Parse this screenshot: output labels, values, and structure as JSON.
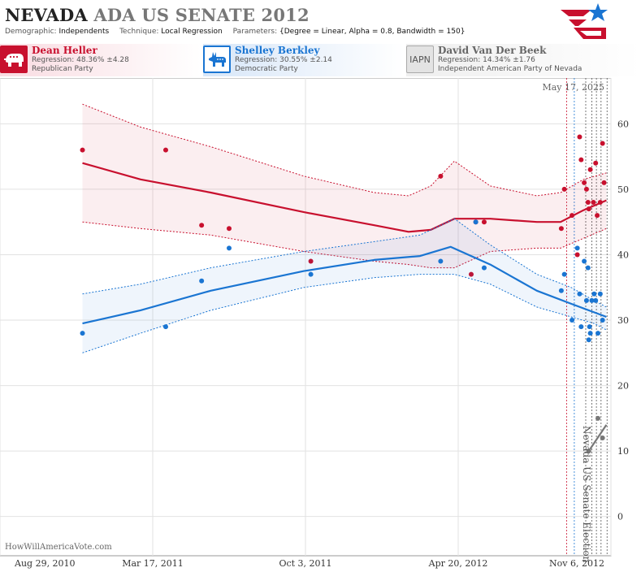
{
  "header": {
    "title_state": "NEVADA",
    "title_rest": "ADA US SENATE 2012",
    "demographic_label": "Demographic:",
    "demographic_value": "Independents",
    "technique_label": "Technique:",
    "technique_value": "Local Regression",
    "parameters_label": "Parameters:",
    "parameters_value": "{Degree = Linear, Alpha = 0.8, Bandwidth = 150}"
  },
  "candidates": [
    {
      "name": "Dean Heller",
      "regression": "Regression: 48.36% ±4.28",
      "party": "Republican Party",
      "color": "#c8102e",
      "icon": "elephant-icon"
    },
    {
      "name": "Shelley Berkley",
      "regression": "Regression: 30.55% ±2.14",
      "party": "Democratic Party",
      "color": "#1a75d2",
      "icon": "donkey-icon"
    },
    {
      "name": "David Van Der Beek",
      "regression": "Regression: 14.34% ±1.76",
      "party": "Independent American Party of Nevada",
      "color": "#777777",
      "badge": "IAPN"
    }
  ],
  "footer": {
    "source": "HowWillAmericaVote.com"
  },
  "chart_data": {
    "type": "scatter",
    "current_date": "May 17, 2025",
    "election_label": "Nevada US Senate Election",
    "x_ticks": [
      "Aug 29, 2010",
      "Mar 17, 2011",
      "Oct 3, 2011",
      "Apr 20, 2012",
      "Nov 6, 2012"
    ],
    "y_ticks": [
      0,
      10,
      20,
      30,
      40,
      50,
      60
    ],
    "xlim": [
      "2010-08-29",
      "2012-11-06"
    ],
    "ylim": [
      -6,
      67
    ],
    "grid": true,
    "poll_dates": [
      "2012-09-09",
      "2012-09-19",
      "2012-10-04",
      "2012-10-12",
      "2012-10-18",
      "2012-10-24",
      "2012-11-01"
    ],
    "series": [
      {
        "name": "Dean Heller",
        "color": "#c8102e",
        "points": [
          [
            "2010-12-15",
            56
          ],
          [
            "2011-04-03",
            56
          ],
          [
            "2011-05-20",
            44.5
          ],
          [
            "2011-06-25",
            44
          ],
          [
            "2011-10-10",
            39
          ],
          [
            "2012-03-28",
            52
          ],
          [
            "2012-05-07",
            37
          ],
          [
            "2012-05-13",
            45
          ],
          [
            "2012-05-24",
            45
          ],
          [
            "2012-09-02",
            44
          ],
          [
            "2012-09-06",
            50
          ],
          [
            "2012-09-16",
            46
          ],
          [
            "2012-09-23",
            40
          ],
          [
            "2012-09-26",
            58
          ],
          [
            "2012-09-28",
            54.5
          ],
          [
            "2012-10-02",
            51
          ],
          [
            "2012-10-05",
            50
          ],
          [
            "2012-10-07",
            48
          ],
          [
            "2012-10-08",
            47
          ],
          [
            "2012-10-10",
            53
          ],
          [
            "2012-10-14",
            48
          ],
          [
            "2012-10-17",
            54
          ],
          [
            "2012-10-19",
            46
          ],
          [
            "2012-10-23",
            48
          ],
          [
            "2012-10-26",
            57
          ],
          [
            "2012-10-28",
            51
          ]
        ],
        "fit": [
          [
            "2010-12-15",
            54
          ],
          [
            "2011-03-01",
            51.5
          ],
          [
            "2011-06-01",
            49.5
          ],
          [
            "2011-10-01",
            46.5
          ],
          [
            "2012-01-01",
            44.5
          ],
          [
            "2012-02-15",
            43.5
          ],
          [
            "2012-03-15",
            43.8
          ],
          [
            "2012-04-15",
            45.5
          ],
          [
            "2012-06-01",
            45.5
          ],
          [
            "2012-08-01",
            45
          ],
          [
            "2012-09-01",
            45
          ],
          [
            "2012-10-01",
            46.8
          ],
          [
            "2012-10-31",
            48.3
          ]
        ],
        "band_upper": [
          [
            "2010-12-15",
            63
          ],
          [
            "2011-03-01",
            59.5
          ],
          [
            "2011-06-01",
            56.5
          ],
          [
            "2011-10-01",
            52
          ],
          [
            "2012-01-01",
            49.5
          ],
          [
            "2012-02-15",
            49
          ],
          [
            "2012-03-15",
            50.5
          ],
          [
            "2012-04-15",
            54.3
          ],
          [
            "2012-06-01",
            50.5
          ],
          [
            "2012-08-01",
            49
          ],
          [
            "2012-09-01",
            49.5
          ],
          [
            "2012-10-01",
            51.5
          ],
          [
            "2012-10-31",
            52.5
          ]
        ],
        "band_lower": [
          [
            "2010-12-15",
            45
          ],
          [
            "2011-03-01",
            44
          ],
          [
            "2011-06-01",
            43
          ],
          [
            "2011-10-01",
            40.5
          ],
          [
            "2012-01-01",
            39
          ],
          [
            "2012-02-15",
            38.5
          ],
          [
            "2012-03-15",
            38
          ],
          [
            "2012-04-15",
            38
          ],
          [
            "2012-06-01",
            40.5
          ],
          [
            "2012-08-01",
            41
          ],
          [
            "2012-09-01",
            41
          ],
          [
            "2012-10-01",
            42.5
          ],
          [
            "2012-10-31",
            44
          ]
        ]
      },
      {
        "name": "Shelley Berkley",
        "color": "#1a75d2",
        "points": [
          [
            "2010-12-15",
            28
          ],
          [
            "2011-04-03",
            29
          ],
          [
            "2011-05-20",
            36
          ],
          [
            "2011-06-25",
            41
          ],
          [
            "2011-10-10",
            37
          ],
          [
            "2012-03-28",
            39
          ],
          [
            "2012-05-13",
            45
          ],
          [
            "2012-05-24",
            38
          ],
          [
            "2012-09-02",
            34.5
          ],
          [
            "2012-09-06",
            37
          ],
          [
            "2012-09-16",
            30
          ],
          [
            "2012-09-23",
            41
          ],
          [
            "2012-09-26",
            34
          ],
          [
            "2012-09-28",
            29
          ],
          [
            "2012-10-02",
            39
          ],
          [
            "2012-10-05",
            33
          ],
          [
            "2012-10-07",
            38
          ],
          [
            "2012-10-08",
            27
          ],
          [
            "2012-10-09",
            29
          ],
          [
            "2012-10-10",
            28
          ],
          [
            "2012-10-12",
            33
          ],
          [
            "2012-10-15",
            34
          ],
          [
            "2012-10-17",
            33
          ],
          [
            "2012-10-20",
            28
          ],
          [
            "2012-10-23",
            34
          ],
          [
            "2012-10-26",
            30
          ]
        ],
        "fit": [
          [
            "2010-12-15",
            29.5
          ],
          [
            "2011-03-01",
            31.5
          ],
          [
            "2011-06-01",
            34.5
          ],
          [
            "2011-10-01",
            37.5
          ],
          [
            "2012-01-01",
            39.2
          ],
          [
            "2012-03-01",
            39.8
          ],
          [
            "2012-04-10",
            41.2
          ],
          [
            "2012-06-01",
            38.5
          ],
          [
            "2012-08-01",
            34.5
          ],
          [
            "2012-09-15",
            32.5
          ],
          [
            "2012-10-15",
            31.2
          ],
          [
            "2012-10-31",
            30.5
          ]
        ],
        "band_upper": [
          [
            "2010-12-15",
            34
          ],
          [
            "2011-03-01",
            35.5
          ],
          [
            "2011-06-01",
            38
          ],
          [
            "2011-10-01",
            40.5
          ],
          [
            "2012-01-01",
            42
          ],
          [
            "2012-03-01",
            43
          ],
          [
            "2012-04-15",
            45.5
          ],
          [
            "2012-06-01",
            41.5
          ],
          [
            "2012-08-01",
            37
          ],
          [
            "2012-09-15",
            35
          ],
          [
            "2012-10-15",
            33
          ],
          [
            "2012-10-31",
            32
          ]
        ],
        "band_lower": [
          [
            "2010-12-15",
            25
          ],
          [
            "2011-03-01",
            28
          ],
          [
            "2011-06-01",
            31.5
          ],
          [
            "2011-10-01",
            35
          ],
          [
            "2012-01-01",
            36.5
          ],
          [
            "2012-03-01",
            37
          ],
          [
            "2012-04-15",
            37
          ],
          [
            "2012-06-01",
            35.5
          ],
          [
            "2012-08-01",
            32
          ],
          [
            "2012-09-15",
            30.5
          ],
          [
            "2012-10-15",
            29.5
          ],
          [
            "2012-10-31",
            28.5
          ]
        ]
      },
      {
        "name": "David Van Der Beek",
        "color": "#777777",
        "points": [
          [
            "2012-10-08",
            10
          ],
          [
            "2012-10-20",
            15
          ],
          [
            "2012-10-26",
            12
          ]
        ],
        "fit": [
          [
            "2012-10-08",
            10
          ],
          [
            "2012-10-31",
            14
          ]
        ]
      }
    ]
  }
}
